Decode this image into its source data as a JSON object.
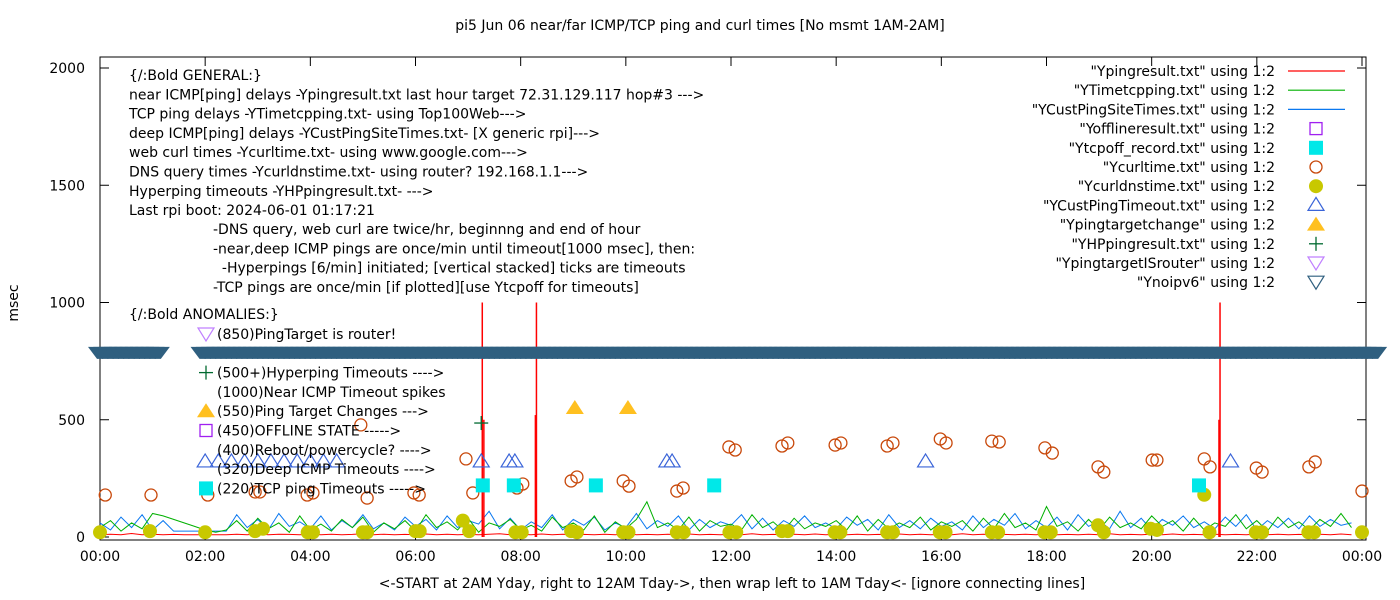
{
  "chart_data": {
    "type": "line",
    "title": "pi5 Jun 06  near/far ICMP/TCP ping and curl times [No msmt 1AM-2AM]",
    "xlabel": "<-START at 2AM Yday, right to 12AM Tday->, then wrap left to 1AM Tday<- [ignore connecting lines]",
    "ylabel": "msec",
    "xlim": [
      0,
      24
    ],
    "ylim": [
      0,
      2000
    ],
    "x_tick_labels": [
      "00:00",
      "02:00",
      "04:00",
      "06:00",
      "08:00",
      "10:00",
      "12:00",
      "14:00",
      "16:00",
      "18:00",
      "20:00",
      "22:00",
      "00:00"
    ],
    "y_tick_labels": [
      "0",
      "500",
      "1000",
      "1500",
      "2000"
    ],
    "legend_position": "top-right",
    "legend": [
      {
        "label": "\"Ypingresult.txt\" using 1:2",
        "style": "line",
        "color": "#ff0000"
      },
      {
        "label": "\"YTimetcpping.txt\" using 1:2",
        "style": "line",
        "color": "#00b000"
      },
      {
        "label": "\"YCustPingSiteTimes.txt\" using 1:2",
        "style": "line",
        "color": "#0a78f0"
      },
      {
        "label": "\"Yofflineresult.txt\" using 1:2",
        "style": "open-square",
        "color": "#a020f0"
      },
      {
        "label": "\"Ytcpoff_record.txt\" using 1:2",
        "style": "filled-square",
        "color": "#00e8e8"
      },
      {
        "label": "\"Ycurltime.txt\" using 1:2",
        "style": "open-circle",
        "color": "#c8480a"
      },
      {
        "label": "\"Ycurldnstime.txt\" using 1:2",
        "style": "filled-circle",
        "color": "#c8c800"
      },
      {
        "label": "\"YCustPingTimeout.txt\" using 1:2",
        "style": "open-triangle",
        "color": "#3a64d8"
      },
      {
        "label": "\"Ypingtargetchange\" using 1:2",
        "style": "filled-triangle",
        "color": "#ffc020"
      },
      {
        "label": "\"YHPpingresult.txt\" using 1:2",
        "style": "plus",
        "color": "#006a30"
      },
      {
        "label": "\"YpingtargetISrouter\" using 1:2",
        "style": "open-down-triangle",
        "color": "#c080ff"
      },
      {
        "label": "\"Ynoipv6\" using 1:2",
        "style": "open-down-triangle",
        "color": "#2f5f7f"
      }
    ],
    "notes_general": [
      "{/:Bold GENERAL:}",
      "near ICMP[ping] delays -Ypingresult.txt last hour target 72.31.129.117 hop#3 --->",
      "TCP ping delays -YTimetcpping.txt- using Top100Web--->",
      "deep ICMP[ping] delays -YCustPingSiteTimes.txt- [X generic rpi]--->",
      "web curl times -Ycurltime.txt- using www.google.com--->",
      "DNS query times -Ycurldnstime.txt- using router? 192.168.1.1--->",
      "Hyperping timeouts -YHPpingresult.txt- --->",
      "Last rpi boot: 2024-06-01 01:17:21"
    ],
    "notes_indented": [
      "-DNS query, web curl are twice/hr, beginnng and end of hour",
      "-near,deep ICMP pings are once/min until timeout[1000 msec], then:",
      "  -Hyperpings [6/min] initiated; [vertical stacked] ticks are timeouts",
      "-TCP pings are once/min [if plotted][use Ytcpoff for timeouts]"
    ],
    "anomalies_title": "{/:Bold ANOMALIES:}",
    "anomalies": [
      {
        "text": "(850)PingTarget is router!",
        "marker": "open-down-triangle",
        "color": "#c080ff"
      },
      {
        "text": "",
        "marker": "none",
        "color": ""
      },
      {
        "text": "(500+)Hyperping Timeouts ---->",
        "marker": "plus",
        "color": "#006a30"
      },
      {
        "text": "(1000)Near ICMP Timeout spikes",
        "marker": "none",
        "color": ""
      },
      {
        "text": "(550)Ping Target Changes --->",
        "marker": "filled-triangle",
        "color": "#ffc020"
      },
      {
        "text": "(450)OFFLINE STATE ----->",
        "marker": "open-square",
        "color": "#a020f0"
      },
      {
        "text": "(400)Reboot/powercycle? ---->",
        "marker": "none",
        "color": ""
      },
      {
        "text": "(320)Deep ICMP Timeouts ---->",
        "marker": "none",
        "color": ""
      },
      {
        "text": "(220)TCP ping Timeouts ----->",
        "marker": "filled-square",
        "color": "#00e8e8"
      }
    ],
    "series": [
      {
        "name": "\"YCustPingSiteTimes.txt\" using 1:2",
        "color": "#0a78f0",
        "x_start": 0,
        "x_step": 0.2,
        "values": [
          60,
          30,
          85,
          40,
          95,
          30,
          70,
          25,
          25,
          25,
          25,
          25,
          25,
          95,
          40,
          75,
          30,
          100,
          45,
          65,
          35,
          90,
          30,
          70,
          40,
          95,
          35,
          60,
          30,
          85,
          45,
          75,
          30,
          90,
          40,
          70,
          55,
          110,
          35,
          80,
          30,
          65,
          40,
          95,
          30,
          75,
          50,
          85,
          30,
          60,
          40,
          100,
          35,
          70,
          45,
          90,
          30,
          75,
          40,
          65,
          50,
          95,
          35,
          80,
          30,
          70,
          45,
          90,
          40,
          60,
          35,
          85,
          50,
          75,
          30,
          95,
          40,
          70,
          35,
          80,
          45,
          65,
          30,
          90,
          40,
          75,
          50,
          100,
          35,
          70,
          40,
          85,
          30,
          95,
          45,
          70,
          35,
          110,
          40,
          80,
          30,
          75,
          50,
          90,
          40,
          65,
          35,
          85,
          45,
          95,
          30,
          70,
          40,
          80,
          35,
          90,
          45,
          75,
          50,
          60
        ]
      },
      {
        "name": "\"YTimetcpping.txt\" using 1:2",
        "color": "#00b000",
        "x_start": 0,
        "x_step": 0.2,
        "values": [
          40,
          70,
          25,
          60,
          35,
          100,
          90,
          75,
          60,
          45,
          30,
          20,
          30,
          70,
          25,
          80,
          35,
          60,
          20,
          90,
          30,
          55,
          25,
          75,
          40,
          85,
          20,
          60,
          35,
          70,
          25,
          95,
          40,
          65,
          30,
          80,
          20,
          60,
          45,
          75,
          30,
          50,
          25,
          85,
          40,
          60,
          30,
          90,
          20,
          65,
          35,
          75,
          150,
          40,
          60,
          30,
          85,
          25,
          70,
          45,
          55,
          30,
          95,
          40,
          65,
          25,
          80,
          35,
          60,
          45,
          70,
          30,
          90,
          25,
          75,
          35,
          60,
          40,
          85,
          30,
          65,
          45,
          70,
          25,
          80,
          35,
          100,
          40,
          60,
          30,
          130,
          45,
          65,
          25,
          75,
          30,
          85,
          40,
          60,
          35,
          90,
          45,
          70,
          25,
          80,
          30,
          60,
          45,
          95,
          35,
          70,
          25,
          85,
          40,
          65,
          30,
          75,
          45,
          100,
          40
        ]
      },
      {
        "name": "\"Ypingresult.txt\" using 1:2",
        "color": "#ff0000",
        "x_start": 0,
        "x_step": 0.2,
        "values": [
          10,
          12,
          10,
          15,
          10,
          12,
          10,
          11,
          10,
          10,
          10,
          10,
          10,
          12,
          10,
          14,
          10,
          12,
          11,
          10,
          13,
          10,
          12,
          10,
          11,
          14,
          10,
          12,
          10,
          11,
          10,
          13,
          10,
          12,
          10,
          11,
          10,
          12,
          14,
          10,
          11,
          10,
          13,
          10,
          12,
          10,
          11,
          10,
          12,
          10,
          14,
          10,
          11,
          10,
          12,
          10,
          13,
          10,
          11,
          10,
          12,
          10,
          14,
          10,
          11,
          10,
          12,
          10,
          13,
          10,
          11,
          10,
          12,
          10,
          11,
          10,
          13,
          10,
          12,
          10,
          11,
          10,
          14,
          10,
          12,
          10,
          11,
          10,
          12,
          10,
          13,
          10,
          11,
          10,
          12,
          10,
          14,
          10,
          11,
          10,
          12,
          10,
          13,
          10,
          11,
          10,
          12,
          10,
          11,
          10,
          13,
          10,
          12,
          10,
          11,
          10,
          12,
          10,
          13,
          10
        ]
      }
    ],
    "near_icmp_spikes": [
      [
        7.27,
        1000
      ],
      [
        7.3,
        500
      ],
      [
        8.3,
        1000
      ],
      [
        8.28,
        520
      ],
      [
        21.3,
        1000
      ],
      [
        21.28,
        500
      ]
    ],
    "curl_times": [
      [
        0.1,
        179
      ],
      [
        0.97,
        179
      ],
      [
        2.05,
        179
      ],
      [
        2.95,
        192
      ],
      [
        3.04,
        192
      ],
      [
        3.94,
        179
      ],
      [
        4.05,
        188
      ],
      [
        4.96,
        478
      ],
      [
        5.08,
        166
      ],
      [
        5.97,
        188
      ],
      [
        6.07,
        179
      ],
      [
        6.96,
        333
      ],
      [
        7.09,
        188
      ],
      [
        7.93,
        209
      ],
      [
        8.04,
        226
      ],
      [
        8.96,
        239
      ],
      [
        9.07,
        256
      ],
      [
        9.95,
        239
      ],
      [
        10.06,
        217
      ],
      [
        10.97,
        196
      ],
      [
        11.09,
        209
      ],
      [
        11.96,
        384
      ],
      [
        12.08,
        371
      ],
      [
        12.97,
        388
      ],
      [
        13.08,
        401
      ],
      [
        13.98,
        392
      ],
      [
        14.09,
        401
      ],
      [
        14.97,
        388
      ],
      [
        15.08,
        401
      ],
      [
        15.98,
        418
      ],
      [
        16.09,
        401
      ],
      [
        16.96,
        409
      ],
      [
        17.1,
        405
      ],
      [
        17.97,
        380
      ],
      [
        18.11,
        358
      ],
      [
        18.98,
        299
      ],
      [
        19.09,
        277
      ],
      [
        20.01,
        328
      ],
      [
        20.1,
        328
      ],
      [
        21.0,
        333
      ],
      [
        21.11,
        299
      ],
      [
        21.99,
        294
      ],
      [
        22.1,
        277
      ],
      [
        22.99,
        299
      ],
      [
        23.11,
        320
      ],
      [
        24.0,
        196
      ]
    ],
    "dns_times": [
      [
        0,
        20
      ],
      [
        0.95,
        25
      ],
      [
        2.0,
        20
      ],
      [
        2.95,
        25
      ],
      [
        3.1,
        35
      ],
      [
        3.95,
        20
      ],
      [
        4.05,
        20
      ],
      [
        5.0,
        20
      ],
      [
        5.08,
        20
      ],
      [
        6.0,
        25
      ],
      [
        6.08,
        25
      ],
      [
        6.9,
        70
      ],
      [
        7.02,
        25
      ],
      [
        7.9,
        20
      ],
      [
        8.02,
        20
      ],
      [
        8.96,
        25
      ],
      [
        9.07,
        20
      ],
      [
        9.95,
        20
      ],
      [
        10.05,
        20
      ],
      [
        10.97,
        20
      ],
      [
        11.1,
        20
      ],
      [
        11.97,
        20
      ],
      [
        12.1,
        20
      ],
      [
        12.97,
        25
      ],
      [
        13.08,
        25
      ],
      [
        13.97,
        20
      ],
      [
        14.08,
        20
      ],
      [
        14.97,
        20
      ],
      [
        15.08,
        20
      ],
      [
        15.97,
        20
      ],
      [
        16.08,
        20
      ],
      [
        16.96,
        20
      ],
      [
        17.08,
        20
      ],
      [
        17.96,
        20
      ],
      [
        18.08,
        20
      ],
      [
        18.98,
        50
      ],
      [
        19.09,
        20
      ],
      [
        19.98,
        35
      ],
      [
        20.1,
        30
      ],
      [
        21.0,
        180
      ],
      [
        21.1,
        20
      ],
      [
        21.98,
        20
      ],
      [
        22.1,
        20
      ],
      [
        22.98,
        20
      ],
      [
        23.09,
        20
      ],
      [
        24.0,
        20
      ]
    ],
    "tcp_timeouts": [
      [
        7.28,
        220
      ],
      [
        7.87,
        220
      ],
      [
        9.43,
        220
      ],
      [
        11.68,
        220
      ],
      [
        20.9,
        220
      ]
    ],
    "deep_icmp_timeouts": [
      [
        2.0,
        320
      ],
      [
        2.25,
        320
      ],
      [
        2.5,
        320
      ],
      [
        2.75,
        320
      ],
      [
        3.0,
        320
      ],
      [
        3.25,
        320
      ],
      [
        3.5,
        320
      ],
      [
        3.75,
        320
      ],
      [
        4.0,
        320
      ],
      [
        4.25,
        320
      ],
      [
        4.5,
        320
      ],
      [
        7.25,
        320
      ],
      [
        7.78,
        320
      ],
      [
        7.89,
        320
      ],
      [
        10.78,
        320
      ],
      [
        10.88,
        320
      ],
      [
        15.7,
        320
      ],
      [
        21.5,
        320
      ]
    ],
    "ping_target_changes": [
      [
        9.03,
        550
      ],
      [
        10.04,
        550
      ]
    ],
    "hyperping_timeouts": [
      [
        7.25,
        486
      ]
    ],
    "no_ipv6": {
      "value": 785,
      "ranges": [
        [
          0,
          1.1
        ],
        [
          1.95,
          24.3
        ]
      ],
      "interval_hours": 0.1
    }
  }
}
